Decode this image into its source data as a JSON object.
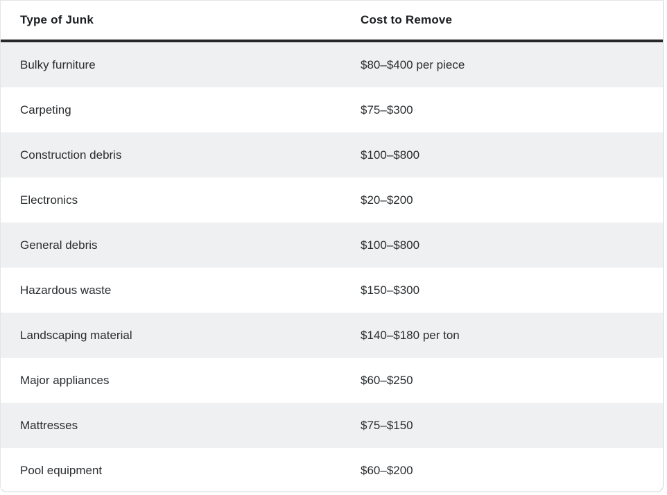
{
  "chart_data": {
    "type": "table",
    "columns": [
      "Type of Junk",
      "Cost to Remove"
    ],
    "rows": [
      [
        "Bulky furniture",
        "$80–$400 per piece"
      ],
      [
        "Carpeting",
        "$75–$300"
      ],
      [
        "Construction debris",
        "$100–$800"
      ],
      [
        "Electronics",
        "$20–$200"
      ],
      [
        "General debris",
        "$100–$800"
      ],
      [
        "Hazardous waste",
        "$150–$300"
      ],
      [
        "Landscaping material",
        "$140–$180 per ton"
      ],
      [
        "Major appliances",
        "$60–$250"
      ],
      [
        "Mattresses",
        "$75–$150"
      ],
      [
        "Pool equipment",
        "$60–$200"
      ]
    ],
    "layout": {
      "stripe_rows": "odd",
      "header_rule_thickness_px": 4
    },
    "colors": {
      "row_stripe": "#eef0f1",
      "header_rule": "#272727",
      "card_border": "#cdd0d3",
      "text": "#2a2d30",
      "header_text": "#1b1d1f"
    }
  }
}
